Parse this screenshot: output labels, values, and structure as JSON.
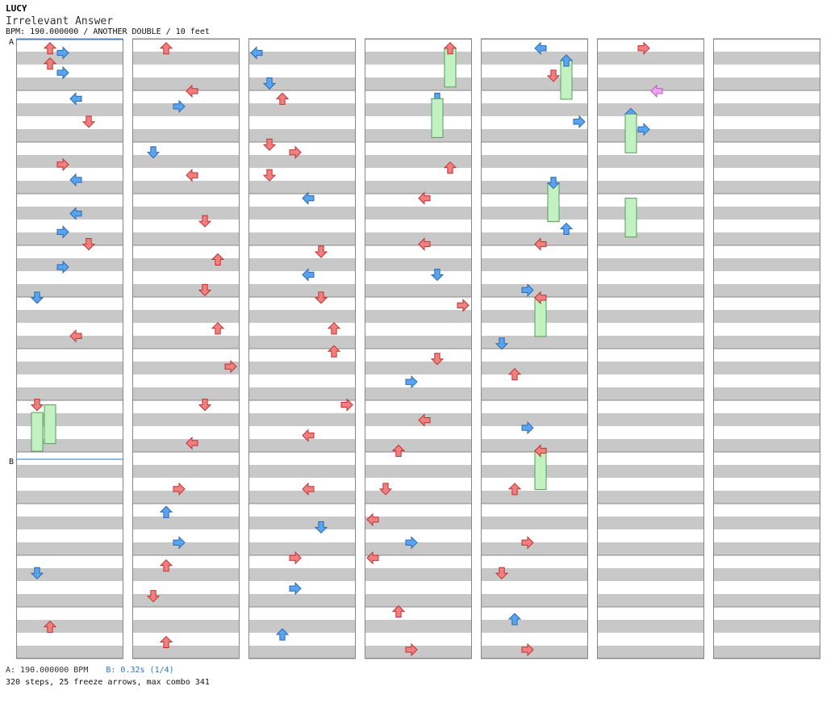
{
  "header": {
    "artist": "LUCY",
    "title": "Irrelevant Answer",
    "meta": "BPM: 190.000000 / ANOTHER DOUBLE / 10 feet"
  },
  "markers": {
    "a": "A",
    "b": "B"
  },
  "footer": {
    "a_text": "A: 190.000000 BPM",
    "b_text": "B: 0.32s (1/4)",
    "summary": "320 steps, 25 freeze arrows, max combo 341"
  },
  "colors": {
    "red": "#f08080",
    "blue": "#5aa4ef",
    "pink": "#f2a2f0",
    "freeze": "#c2f2c2",
    "stripe": "#c8c8c8",
    "grid": "#888888",
    "marker_line": "#2a74c8"
  },
  "notes": [
    [
      "c2",
      0.02,
      "red"
    ],
    [
      "c2",
      0.12,
      "red"
    ],
    [
      "c3",
      0.05,
      "blue"
    ],
    [
      "c3",
      0.18,
      "blue"
    ],
    [
      "c4",
      0.35,
      "blue"
    ],
    [
      "c5",
      0.5,
      "red"
    ],
    [
      "c3",
      0.78,
      "red"
    ],
    [
      "c4",
      0.88,
      "blue"
    ],
    [
      "c4",
      1.1,
      "blue"
    ],
    [
      "c3",
      1.22,
      "blue"
    ],
    [
      "c5",
      1.3,
      "red"
    ],
    [
      "c3",
      1.45,
      "blue"
    ],
    [
      "c1",
      1.65,
      "blue"
    ],
    [
      "c4",
      1.9,
      "red"
    ],
    [
      "c1",
      2.35,
      "red"
    ],
    [
      "c2",
      2.35,
      "freeze"
    ],
    [
      "c1",
      2.4,
      "freeze"
    ],
    [
      "c1",
      3.45,
      "blue"
    ],
    [
      "c2",
      3.8,
      "red"
    ],
    [
      "c2",
      0.02,
      "red"
    ],
    [
      "c4",
      0.3,
      "red"
    ],
    [
      "c3",
      0.4,
      "blue"
    ],
    [
      "c1",
      0.7,
      "blue"
    ],
    [
      "c4",
      0.85,
      "red"
    ],
    [
      "c5",
      1.15,
      "red"
    ],
    [
      "c6",
      1.4,
      "red"
    ],
    [
      "c5",
      1.6,
      "red"
    ],
    [
      "c6",
      1.85,
      "red"
    ],
    [
      "c7",
      2.1,
      "red"
    ],
    [
      "c5",
      2.35,
      "red"
    ],
    [
      "c4",
      2.6,
      "red"
    ],
    [
      "c3",
      2.9,
      "red"
    ],
    [
      "c2",
      3.05,
      "blue"
    ],
    [
      "c3",
      3.25,
      "blue"
    ],
    [
      "c2",
      3.4,
      "red"
    ],
    [
      "c1",
      3.6,
      "red"
    ],
    [
      "c2",
      3.9,
      "red"
    ],
    [
      "c0",
      0.05,
      "blue"
    ],
    [
      "c1",
      0.25,
      "blue"
    ],
    [
      "c2",
      0.35,
      "red"
    ],
    [
      "c1",
      0.65,
      "red"
    ],
    [
      "c3",
      0.7,
      "red"
    ],
    [
      "c1",
      0.85,
      "red"
    ],
    [
      "c4",
      1.0,
      "blue"
    ],
    [
      "c5",
      1.35,
      "red"
    ],
    [
      "c4",
      1.5,
      "blue"
    ],
    [
      "c5",
      1.65,
      "red"
    ],
    [
      "c6",
      1.85,
      "red"
    ],
    [
      "c6",
      2.0,
      "red"
    ],
    [
      "c7",
      2.35,
      "red"
    ],
    [
      "c4",
      2.55,
      "red"
    ],
    [
      "c4",
      2.9,
      "red"
    ],
    [
      "c5",
      3.15,
      "blue"
    ],
    [
      "c3",
      3.35,
      "red"
    ],
    [
      "c3",
      3.55,
      "blue"
    ],
    [
      "c2",
      3.85,
      "blue"
    ],
    [
      "c6",
      0.02,
      "freeze"
    ],
    [
      "c6",
      0.02,
      "red"
    ],
    [
      "c5",
      0.35,
      "blue"
    ],
    [
      "c5",
      0.35,
      "freeze"
    ],
    [
      "c6",
      0.8,
      "red"
    ],
    [
      "c4",
      1.0,
      "red"
    ],
    [
      "c4",
      1.3,
      "red"
    ],
    [
      "c5",
      1.5,
      "blue"
    ],
    [
      "c7",
      1.7,
      "red"
    ],
    [
      "c5",
      2.05,
      "red"
    ],
    [
      "c3",
      2.2,
      "blue"
    ],
    [
      "c4",
      2.45,
      "red"
    ],
    [
      "c2",
      2.65,
      "red"
    ],
    [
      "c1",
      2.9,
      "red"
    ],
    [
      "c0",
      3.1,
      "red"
    ],
    [
      "c0",
      3.35,
      "red"
    ],
    [
      "c3",
      3.25,
      "blue"
    ],
    [
      "c2",
      3.7,
      "red"
    ],
    [
      "c3",
      3.95,
      "red"
    ],
    [
      "c4",
      0.02,
      "blue"
    ],
    [
      "c5",
      0.2,
      "red"
    ],
    [
      "c6",
      0.1,
      "freeze"
    ],
    [
      "c6",
      0.1,
      "blue"
    ],
    [
      "c7",
      0.5,
      "blue"
    ],
    [
      "c5",
      0.9,
      "freeze"
    ],
    [
      "c5",
      0.9,
      "blue"
    ],
    [
      "c6",
      1.2,
      "blue"
    ],
    [
      "c4",
      1.3,
      "red"
    ],
    [
      "c3",
      1.6,
      "blue"
    ],
    [
      "c4",
      1.65,
      "freeze"
    ],
    [
      "c4",
      1.65,
      "red"
    ],
    [
      "c1",
      1.95,
      "blue"
    ],
    [
      "c2",
      2.15,
      "red"
    ],
    [
      "c3",
      2.5,
      "blue"
    ],
    [
      "c4",
      2.65,
      "freeze"
    ],
    [
      "c4",
      2.65,
      "red"
    ],
    [
      "c2",
      2.9,
      "red"
    ],
    [
      "c3",
      3.25,
      "red"
    ],
    [
      "c1",
      3.45,
      "red"
    ],
    [
      "c2",
      3.75,
      "blue"
    ],
    [
      "c3",
      3.95,
      "red"
    ],
    [
      "c3",
      0.02,
      "red"
    ],
    [
      "c4",
      0.3,
      "pink"
    ],
    [
      "c2",
      0.45,
      "blue"
    ],
    [
      "c2",
      0.45,
      "freeze"
    ],
    [
      "c3",
      0.55,
      "blue"
    ],
    [
      "c2",
      1.0,
      "freeze"
    ]
  ]
}
